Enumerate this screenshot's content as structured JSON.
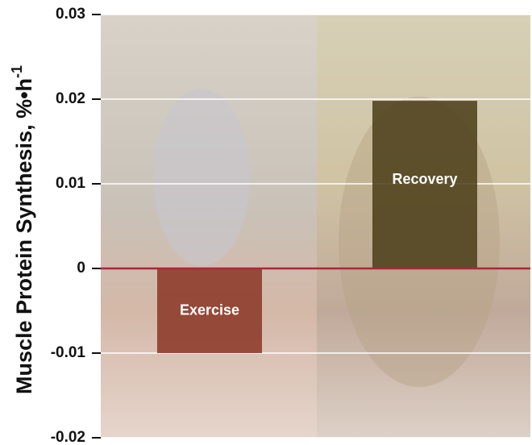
{
  "chart_data": {
    "type": "bar",
    "y_label": {
      "text": "Muscle Protein Synthesis, %•h",
      "superscript": "-1"
    },
    "categories": [
      "Exercise",
      "Recovery"
    ],
    "values": [
      -0.01,
      0.0198
    ],
    "colors": [
      "#8a3524",
      "#4a3d18"
    ],
    "ylim": [
      -0.02,
      0.03
    ],
    "yticks": [
      -0.02,
      -0.01,
      0,
      0.01,
      0.02,
      0.03
    ],
    "grid": true,
    "zero_line_color": "#b0243a"
  }
}
